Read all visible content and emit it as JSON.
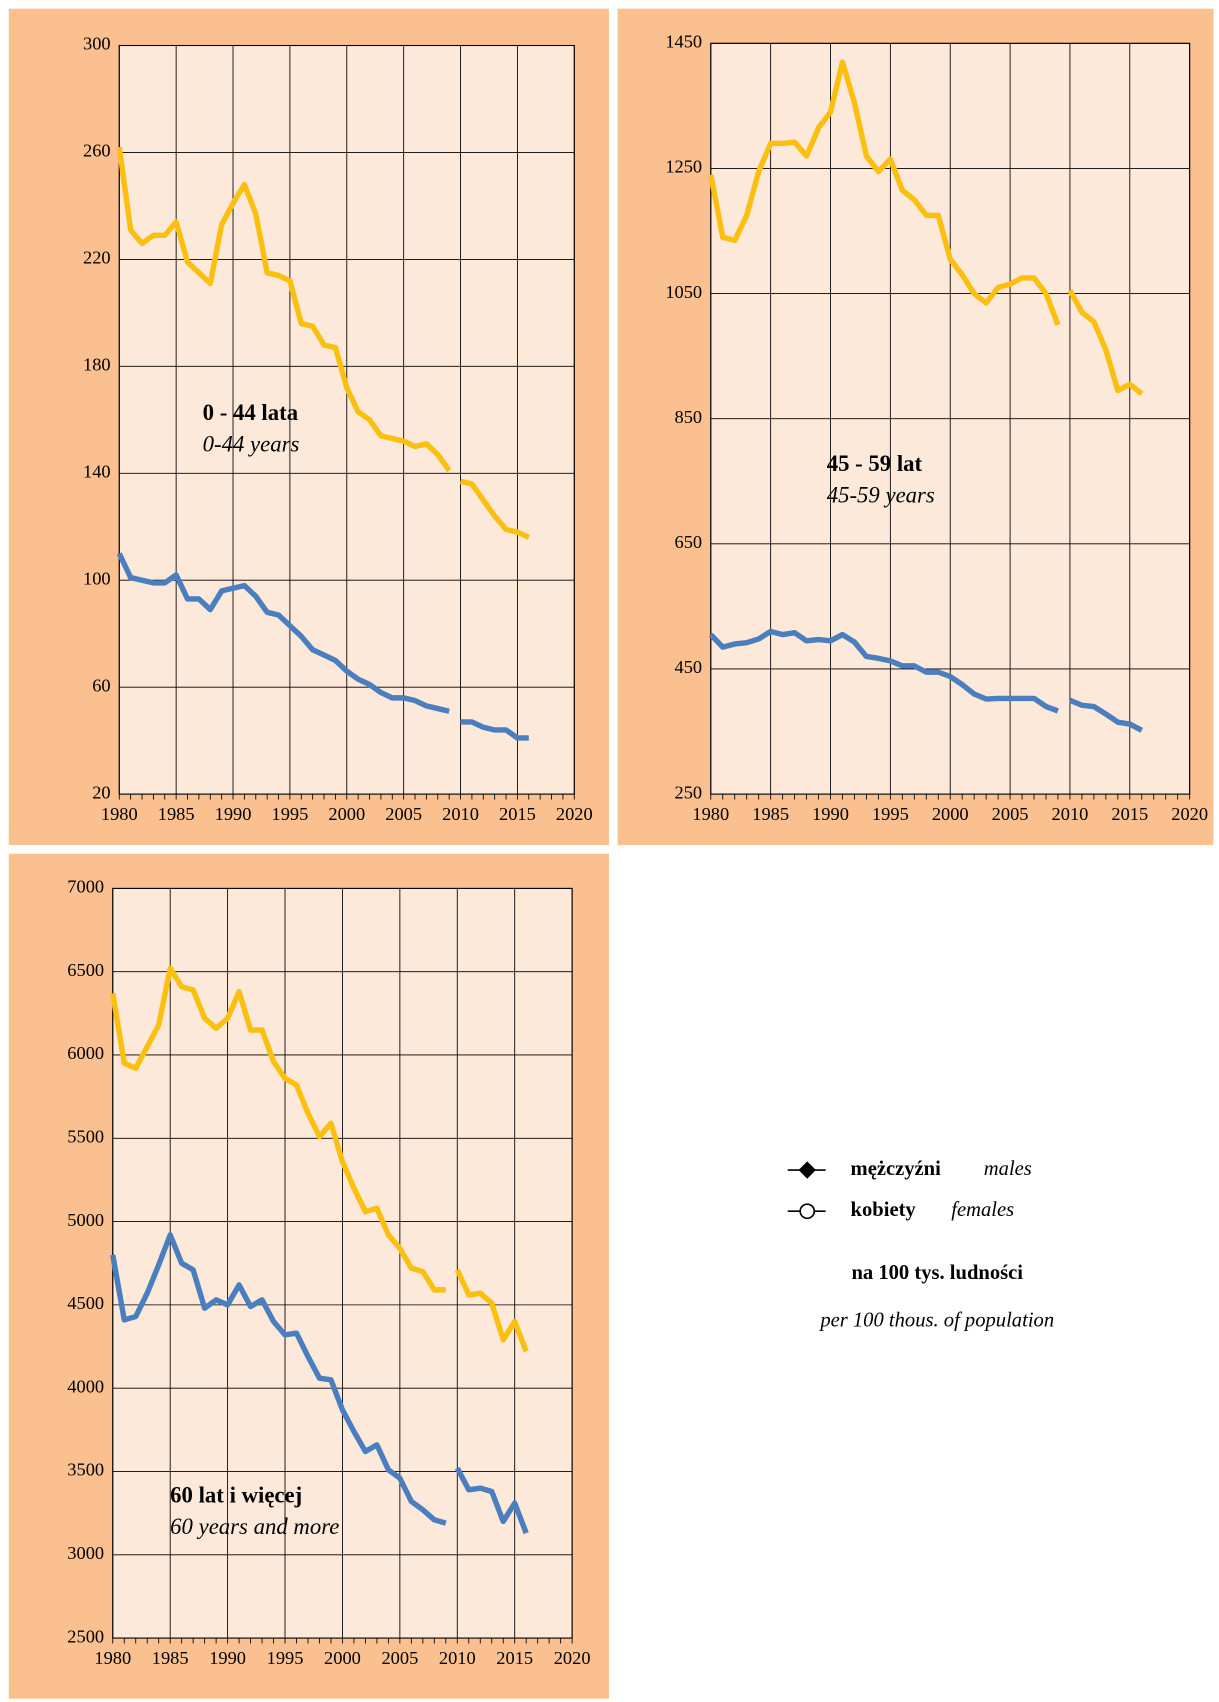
{
  "chart_data": [
    {
      "type": "line",
      "annotation": {
        "title": "0 - 44 lata",
        "subtitle": "0-44 years"
      },
      "x": [
        1980,
        1981,
        1982,
        1983,
        1984,
        1985,
        1986,
        1987,
        1988,
        1989,
        1990,
        1991,
        1992,
        1993,
        1994,
        1995,
        1996,
        1997,
        1998,
        1999,
        2000,
        2001,
        2002,
        2003,
        2004,
        2005,
        2006,
        2007,
        2008,
        2009,
        null,
        2010,
        2011,
        2012,
        2013,
        2014,
        2015,
        2016
      ],
      "xlim": [
        1980,
        2020
      ],
      "xticks": [
        1980,
        1985,
        1990,
        1995,
        2000,
        2005,
        2010,
        2015,
        2020
      ],
      "ylim": [
        20,
        300
      ],
      "yticks": [
        20,
        60,
        100,
        140,
        180,
        220,
        260,
        300
      ],
      "grid": true,
      "series": [
        {
          "color": "#fbbf0f",
          "values": [
            262,
            231,
            226,
            229,
            229,
            234,
            219,
            215,
            211,
            233,
            241,
            248,
            237,
            215,
            214,
            212,
            196,
            195,
            188,
            187,
            172,
            163,
            160,
            154,
            153,
            152,
            150,
            151,
            147,
            141,
            null,
            137,
            136,
            130,
            124,
            119,
            118,
            116
          ]
        },
        {
          "color": "#4a7ebf",
          "values": [
            110,
            101,
            100,
            99,
            99,
            102,
            93,
            93,
            89,
            96,
            97,
            98,
            94,
            88,
            87,
            83,
            79,
            74,
            72,
            70,
            66,
            63,
            61,
            58,
            56,
            56,
            55,
            53,
            52,
            51,
            null,
            47,
            47,
            45,
            44,
            44,
            41,
            41
          ]
        }
      ]
    },
    {
      "type": "line",
      "annotation": {
        "title": "45 - 59 lat",
        "subtitle": "45-59 years"
      },
      "x": [
        1980,
        1981,
        1982,
        1983,
        1984,
        1985,
        1986,
        1987,
        1988,
        1989,
        1990,
        1991,
        1992,
        1993,
        1994,
        1995,
        1996,
        1997,
        1998,
        1999,
        2000,
        2001,
        2002,
        2003,
        2004,
        2005,
        2006,
        2007,
        2008,
        2009,
        null,
        2010,
        2011,
        2012,
        2013,
        2014,
        2015,
        2016
      ],
      "xlim": [
        1980,
        2020
      ],
      "xticks": [
        1980,
        1985,
        1990,
        1995,
        2000,
        2005,
        2010,
        2015,
        2020
      ],
      "ylim": [
        250,
        1450
      ],
      "yticks": [
        250,
        450,
        650,
        850,
        1050,
        1250,
        1450
      ],
      "grid": true,
      "series": [
        {
          "color": "#fbbf0f",
          "values": [
            1240,
            1140,
            1135,
            1175,
            1245,
            1290,
            1290,
            1292,
            1270,
            1315,
            1340,
            1420,
            1355,
            1270,
            1245,
            1265,
            1215,
            1200,
            1175,
            1175,
            1105,
            1080,
            1050,
            1035,
            1060,
            1065,
            1075,
            1075,
            1050,
            1000,
            null,
            1055,
            1020,
            1005,
            960,
            895,
            905,
            890
          ]
        },
        {
          "color": "#4a7ebf",
          "values": [
            505,
            485,
            490,
            492,
            498,
            510,
            505,
            508,
            495,
            497,
            495,
            505,
            493,
            470,
            467,
            463,
            455,
            455,
            445,
            445,
            438,
            425,
            410,
            402,
            403,
            403,
            403,
            403,
            390,
            383,
            null,
            400,
            392,
            390,
            378,
            365,
            362,
            352
          ]
        }
      ]
    },
    {
      "type": "line",
      "annotation": {
        "title": "60 lat i więcej",
        "subtitle": "60 years and more"
      },
      "x": [
        1980,
        1981,
        1982,
        1983,
        1984,
        1985,
        1986,
        1987,
        1988,
        1989,
        1990,
        1991,
        1992,
        1993,
        1994,
        1995,
        1996,
        1997,
        1998,
        1999,
        2000,
        2001,
        2002,
        2003,
        2004,
        2005,
        2006,
        2007,
        2008,
        2009,
        null,
        2010,
        2011,
        2012,
        2013,
        2014,
        2015,
        2016
      ],
      "xlim": [
        1980,
        2020
      ],
      "xticks": [
        1980,
        1985,
        1990,
        1995,
        2000,
        2005,
        2010,
        2015,
        2020
      ],
      "ylim": [
        2500,
        7000
      ],
      "yticks": [
        2500,
        3000,
        3500,
        4000,
        4500,
        5000,
        5500,
        6000,
        6500,
        7000
      ],
      "grid": true,
      "series": [
        {
          "color": "#fbbf0f",
          "values": [
            6370,
            5950,
            5920,
            6050,
            6180,
            6520,
            6410,
            6390,
            6220,
            6160,
            6220,
            6380,
            6150,
            6150,
            5960,
            5860,
            5820,
            5650,
            5510,
            5590,
            5360,
            5200,
            5060,
            5080,
            4920,
            4840,
            4720,
            4700,
            4590,
            4590,
            null,
            4710,
            4560,
            4570,
            4510,
            4290,
            4400,
            4220
          ]
        },
        {
          "color": "#4a7ebf",
          "values": [
            4800,
            4410,
            4430,
            4570,
            4740,
            4920,
            4750,
            4710,
            4480,
            4530,
            4500,
            4620,
            4490,
            4530,
            4400,
            4320,
            4330,
            4190,
            4060,
            4050,
            3870,
            3740,
            3620,
            3660,
            3510,
            3460,
            3320,
            3270,
            3210,
            3190,
            null,
            3520,
            3390,
            3400,
            3380,
            3200,
            3310,
            3130
          ]
        }
      ]
    }
  ],
  "legend": {
    "items": [
      {
        "label": "mężczyźni",
        "label_en": "males",
        "marker": "diamond"
      },
      {
        "label": "kobiety",
        "label_en": "females",
        "marker": "circle"
      }
    ],
    "note": "na 100 tys. ludności",
    "note_en": "per 100 thous. of population"
  }
}
